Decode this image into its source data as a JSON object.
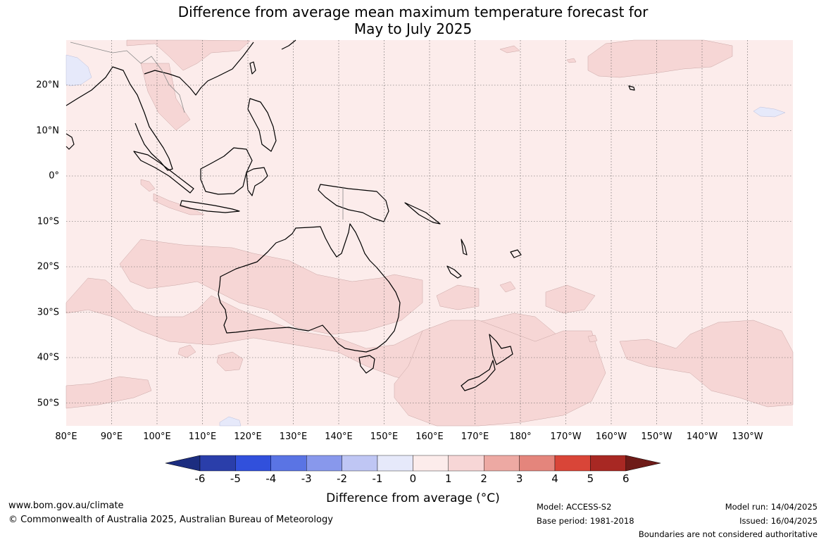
{
  "title_line1": "Difference from average mean maximum temperature forecast for",
  "title_line2": "May to July 2025",
  "longitude_labels": [
    "80°E",
    "90°E",
    "100°E",
    "110°E",
    "120°E",
    "130°E",
    "140°E",
    "150°E",
    "160°E",
    "170°E",
    "180°",
    "170°W",
    "160°W",
    "150°W",
    "140°W",
    "130°W"
  ],
  "latitude_labels": [
    "20°N",
    "10°N",
    "0°",
    "10°S",
    "20°S",
    "30°S",
    "40°S",
    "50°S"
  ],
  "colorbar": {
    "ticks": [
      "-6",
      "-5",
      "-4",
      "-3",
      "-2",
      "-1",
      "0",
      "1",
      "2",
      "3",
      "4",
      "5",
      "6"
    ],
    "colors": [
      "#1c2d80",
      "#2a3eaa",
      "#3150dc",
      "#5a74e4",
      "#8898ec",
      "#bfc6f4",
      "#e6e9fa",
      "#fceceb",
      "#f7d6d6",
      "#eda9a3",
      "#e4857c",
      "#d94538",
      "#a82823",
      "#6e1b18"
    ],
    "title": "Difference from average (°C)"
  },
  "map_colors": {
    "ocean_base": "#fceceb",
    "warm_zone": "#f6d6d5",
    "cool_zone": "#e6e9fa",
    "coastline": "#000000",
    "border": "#888888"
  },
  "footer": {
    "website": "www.bom.gov.au/climate",
    "copyright": "© Commonwealth of Australia 2025, Australian Bureau of Meteorology",
    "model": "Model: ACCESS-S2",
    "base_period": "Base period: 1981-2018",
    "model_run": "Model run: 14/04/2025",
    "issued": "Issued: 16/04/2025",
    "disclaimer": "Boundaries are not considered authoritative"
  }
}
